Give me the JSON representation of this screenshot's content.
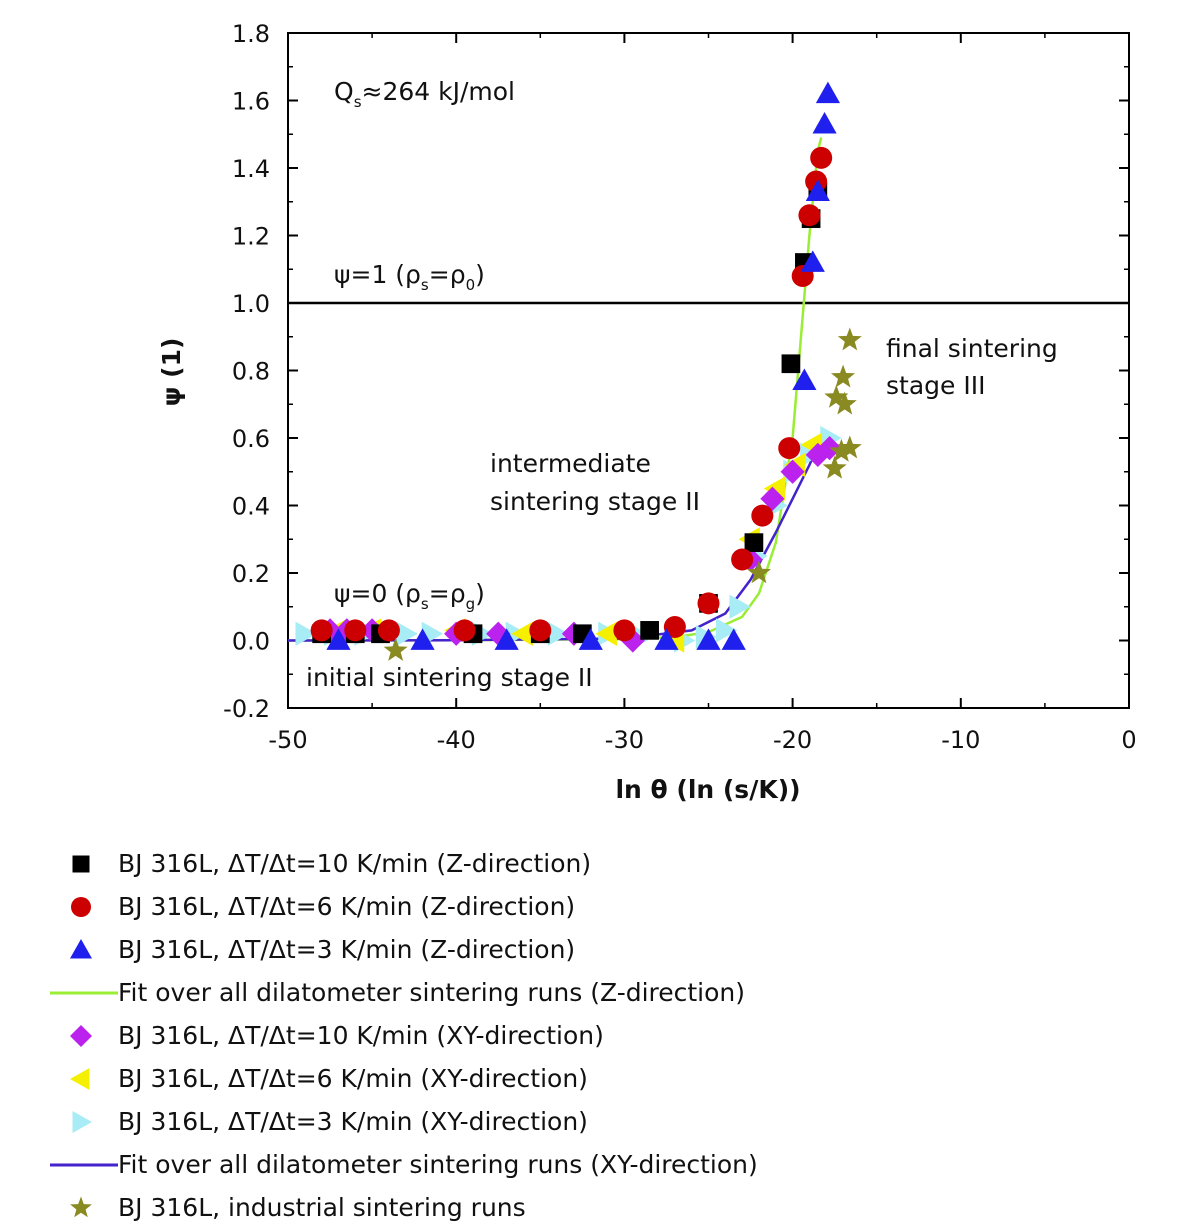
{
  "chart_data": {
    "type": "scatter",
    "xlabel": "ln θ (ln (s/K))",
    "ylabel": "ψ (1)",
    "xlim": [
      -50,
      0
    ],
    "ylim": [
      -0.2,
      1.8
    ],
    "xticks": [
      -50,
      -40,
      -30,
      -20,
      -10,
      0
    ],
    "yticks": [
      -0.2,
      0.0,
      0.2,
      0.4,
      0.6,
      0.8,
      1.0,
      1.2,
      1.4,
      1.6,
      1.8
    ],
    "xtick_labels": [
      "-50",
      "-40",
      "-30",
      "-20",
      "-10",
      "0"
    ],
    "ytick_labels": [
      "-0.2",
      "0.0",
      "0.2",
      "0.4",
      "0.6",
      "0.8",
      "1.0",
      "1.2",
      "1.4",
      "1.6",
      "1.8"
    ],
    "grid": false,
    "legend_position": "below",
    "reference_lines": [
      {
        "y": 1.0,
        "label": "ψ=1 (ρs=ρ0)"
      }
    ],
    "annotations": {
      "activation": {
        "main": "Q",
        "sub": "s",
        "rest": "≈264 kJ/mol"
      },
      "psi_one": {
        "a": "ψ=1 (ρ",
        "sub1": "s",
        "b": "=ρ",
        "sub2": "0",
        "c": ")"
      },
      "psi_zero": {
        "a": "ψ=0 (ρ",
        "sub1": "s",
        "b": "=ρ",
        "sub2": "g",
        "c": ")"
      },
      "stage_initial": "initial sintering stage II",
      "stage_intermediate_1": "intermediate",
      "stage_intermediate_2": "sintering stage II",
      "stage_final_1": "final sintering",
      "stage_final_2": "stage III"
    },
    "series": [
      {
        "name": "BJ 316L, ΔT/Δt=10 K/min (Z-direction)",
        "marker": "square",
        "color": "#000000",
        "points": [
          [
            -48,
            0.02
          ],
          [
            -46,
            0.02
          ],
          [
            -44.5,
            0.02
          ],
          [
            -39,
            0.02
          ],
          [
            -35,
            0.02
          ],
          [
            -32.5,
            0.02
          ],
          [
            -28.5,
            0.03
          ],
          [
            -25,
            0.11
          ],
          [
            -22.3,
            0.29
          ],
          [
            -20.1,
            0.82
          ],
          [
            -19.3,
            1.12
          ],
          [
            -18.9,
            1.25
          ],
          [
            -18.5,
            1.33
          ]
        ]
      },
      {
        "name": "BJ 316L, ΔT/Δt=6 K/min (Z-direction)",
        "marker": "circle",
        "color": "#cc0000",
        "points": [
          [
            -48,
            0.03
          ],
          [
            -46,
            0.03
          ],
          [
            -44,
            0.03
          ],
          [
            -39.5,
            0.03
          ],
          [
            -35,
            0.03
          ],
          [
            -30,
            0.03
          ],
          [
            -27,
            0.04
          ],
          [
            -25,
            0.11
          ],
          [
            -23,
            0.24
          ],
          [
            -21.8,
            0.37
          ],
          [
            -20.2,
            0.57
          ],
          [
            -19.4,
            1.08
          ],
          [
            -19,
            1.26
          ],
          [
            -18.6,
            1.36
          ],
          [
            -18.3,
            1.43
          ]
        ]
      },
      {
        "name": "BJ 316L, ΔT/Δt=3 K/min (Z-direction)",
        "marker": "triangle-up",
        "color": "#2020ee",
        "points": [
          [
            -47,
            0.0
          ],
          [
            -42,
            0.0
          ],
          [
            -37,
            0.0
          ],
          [
            -32,
            0.0
          ],
          [
            -27.5,
            0.0
          ],
          [
            -25,
            0.0
          ],
          [
            -23.5,
            0.0
          ],
          [
            -19.3,
            0.77
          ],
          [
            -18.8,
            1.12
          ],
          [
            -18.5,
            1.33
          ],
          [
            -18.1,
            1.53
          ],
          [
            -17.9,
            1.62
          ]
        ]
      },
      {
        "name": "Fit over all dilatometer sintering runs (Z-direction)",
        "marker": "line",
        "color": "#99ee33",
        "points": [
          [
            -50,
            0.0
          ],
          [
            -40,
            0.001
          ],
          [
            -30,
            0.004
          ],
          [
            -27,
            0.01
          ],
          [
            -25,
            0.025
          ],
          [
            -23,
            0.07
          ],
          [
            -22,
            0.14
          ],
          [
            -21,
            0.29
          ],
          [
            -20,
            0.6
          ],
          [
            -19.5,
            0.9
          ],
          [
            -19,
            1.2
          ],
          [
            -18.5,
            1.45
          ],
          [
            -18.3,
            1.49
          ]
        ]
      },
      {
        "name": "BJ 316L, ΔT/Δt=10 K/min (XY-direction)",
        "marker": "diamond",
        "color": "#bb22ee",
        "points": [
          [
            -47.5,
            0.03
          ],
          [
            -46.5,
            0.03
          ],
          [
            -45,
            0.03
          ],
          [
            -40,
            0.02
          ],
          [
            -37.5,
            0.02
          ],
          [
            -33,
            0.02
          ],
          [
            -29.5,
            0.0
          ],
          [
            -22.5,
            0.24
          ],
          [
            -21.2,
            0.42
          ],
          [
            -20,
            0.5
          ],
          [
            -18.5,
            0.55
          ],
          [
            -17.8,
            0.57
          ]
        ]
      },
      {
        "name": "BJ 316L, ΔT/Δt=6 K/min (XY-direction)",
        "marker": "triangle-left",
        "color": "#f5f000",
        "points": [
          [
            -47,
            0.03
          ],
          [
            -45,
            0.03
          ],
          [
            -40,
            0.03
          ],
          [
            -36,
            0.02
          ],
          [
            -31,
            0.02
          ],
          [
            -27,
            0.0
          ],
          [
            -22.5,
            0.3
          ],
          [
            -21,
            0.45
          ],
          [
            -19.8,
            0.52
          ],
          [
            -18.8,
            0.58
          ]
        ]
      },
      {
        "name": "BJ 316L, ΔT/Δt=3 K/min (XY-direction)",
        "marker": "triangle-right",
        "color": "#a8ecf6",
        "points": [
          [
            -49,
            0.02
          ],
          [
            -47.3,
            0.02
          ],
          [
            -45.5,
            0.02
          ],
          [
            -43,
            0.02
          ],
          [
            -41.5,
            0.02
          ],
          [
            -38.5,
            0.02
          ],
          [
            -36.5,
            0.02
          ],
          [
            -34,
            0.02
          ],
          [
            -31,
            0.02
          ],
          [
            -29,
            0.01
          ],
          [
            -26.5,
            0.0
          ],
          [
            -25.2,
            0.01
          ],
          [
            -24,
            0.03
          ],
          [
            -23.2,
            0.1
          ],
          [
            -22.2,
            0.25
          ],
          [
            -21,
            0.4
          ],
          [
            -20,
            0.5
          ],
          [
            -19,
            0.55
          ],
          [
            -17.8,
            0.6
          ]
        ]
      },
      {
        "name": "Fit over all dilatometer sintering runs (XY-direction)",
        "marker": "line",
        "color": "#4422cc",
        "points": [
          [
            -50,
            0.0
          ],
          [
            -40,
            0.001
          ],
          [
            -30,
            0.006
          ],
          [
            -26,
            0.03
          ],
          [
            -24,
            0.08
          ],
          [
            -22.5,
            0.18
          ],
          [
            -21,
            0.32
          ],
          [
            -20,
            0.42
          ],
          [
            -19,
            0.52
          ],
          [
            -18.2,
            0.61
          ]
        ]
      },
      {
        "name": "BJ 316L, industrial sintering runs",
        "marker": "star",
        "color": "#8a8a22",
        "points": [
          [
            -43.6,
            -0.03
          ],
          [
            -22,
            0.2
          ],
          [
            -17.5,
            0.51
          ],
          [
            -17.4,
            0.72
          ],
          [
            -17.1,
            0.56
          ],
          [
            -17,
            0.78
          ],
          [
            -16.9,
            0.7
          ],
          [
            -16.6,
            0.57
          ],
          [
            -16.6,
            0.89
          ]
        ]
      }
    ]
  }
}
